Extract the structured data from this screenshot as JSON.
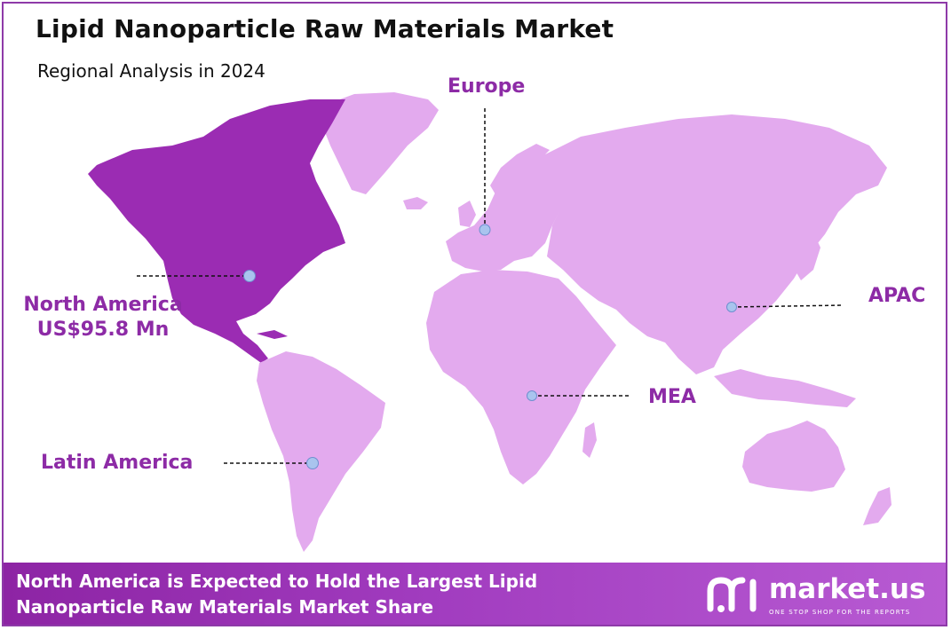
{
  "header": {
    "title": "Lipid Nanoparticle Raw Materials Market",
    "subtitle": "Regional Analysis in 2024"
  },
  "regions": [
    {
      "name": "North America",
      "value": "US$95.8 Mn",
      "highlighted": true
    },
    {
      "name": "Europe",
      "highlighted": false
    },
    {
      "name": "APAC",
      "highlighted": false
    },
    {
      "name": "MEA",
      "highlighted": false
    },
    {
      "name": "Latin America",
      "highlighted": false
    }
  ],
  "footer": {
    "text": "North America is Expected to Hold the Largest Lipid Nanoparticle Raw Materials Market Share"
  },
  "brand": {
    "name": "market.us",
    "tagline": "ONE STOP SHOP FOR THE REPORTS"
  },
  "colors": {
    "highlight_region": "#9b2cb3",
    "other_regions": "#e3aaee",
    "label": "#8d2ba6",
    "marker": "#a9c4ee",
    "footer_start": "#8d24a4",
    "footer_end": "#b85bd3"
  }
}
